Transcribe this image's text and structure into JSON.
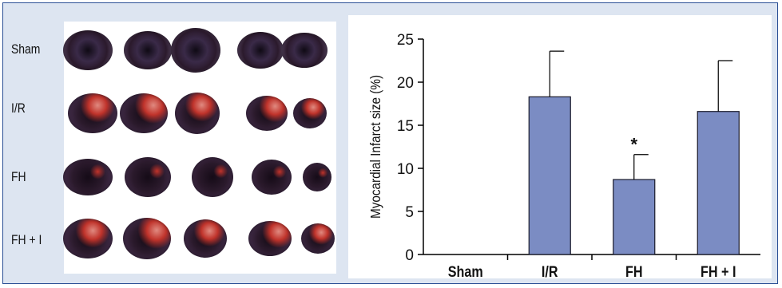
{
  "figure": {
    "row_labels": [
      "Sham",
      "I/R",
      "FH",
      "FH + I"
    ],
    "slice_colors": {
      "viable": "#2b1a2c",
      "viable_edge": "#4a3354",
      "infarct": "#c0332b",
      "infarct_light": "#e08a80"
    }
  },
  "chart_data": {
    "type": "bar",
    "categories": [
      "Sham",
      "I/R",
      "FH",
      "FH + I"
    ],
    "values": [
      0,
      18.3,
      8.7,
      16.6
    ],
    "error_upper": [
      0,
      23.6,
      11.6,
      22.5
    ],
    "annotations": [
      {
        "category": "FH",
        "text": "*"
      }
    ],
    "ylabel": "Myocardial Infarct size (%)",
    "xlabel": "",
    "ylim": [
      0,
      25
    ],
    "yticks": [
      0,
      5,
      10,
      15,
      20,
      25
    ],
    "bar_color": "#7b8cc3",
    "grid": false
  }
}
